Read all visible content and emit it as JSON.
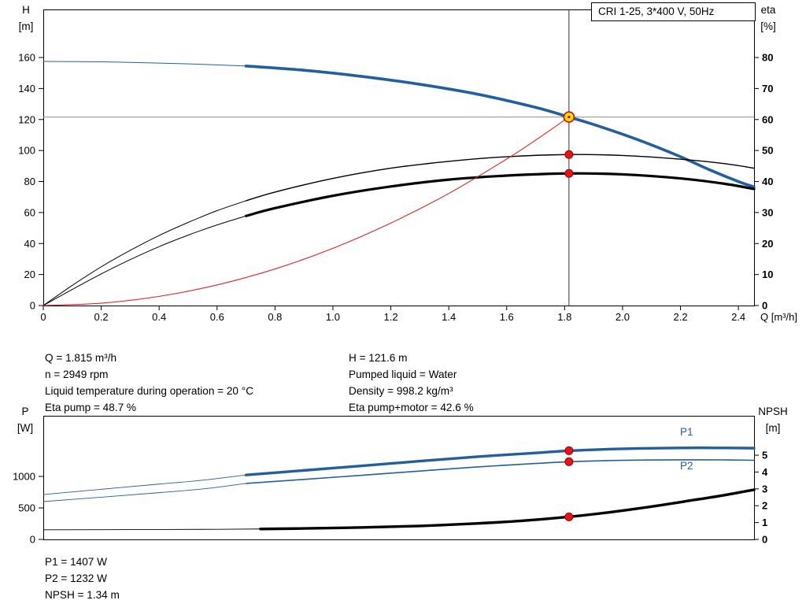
{
  "palette": {
    "curve_blue": "#235f9f",
    "curve_black": "#000000",
    "system_red": "#e02424",
    "dot_red": "#ee1111",
    "dot_stroke": "#990000",
    "duty_fill": "#ffe000",
    "duty_stroke": "#dd0000",
    "crosshair_gray": "#909090",
    "axis_black": "#000000"
  },
  "title_box": "CRI 1-25, 3*400 V, 50Hz",
  "readout": {
    "left": [
      "Q = 1.815 m³/h",
      "n = 2949 rpm",
      "Liquid temperature during operation = 20 °C",
      "Eta pump = 48.7 %"
    ],
    "right": [
      "H = 121.6 m",
      "Pumped liquid = Water",
      "Density = 998.2 kg/m³",
      "Eta pump+motor = 42.6 %"
    ]
  },
  "footer": {
    "lines": [
      "P1 = 1407 W",
      "P2 = 1232 W",
      "NPSH = 1.34 m"
    ]
  },
  "chart_data": [
    {
      "id": "qh",
      "type": "line",
      "title": "CRI 1-25, 3*400 V, 50Hz",
      "x_axis": {
        "label": "Q [m³/h]",
        "min": 0,
        "max": 2.454,
        "tick_values": [
          0,
          0.2,
          0.4,
          0.6,
          0.8,
          1.0,
          1.2,
          1.4,
          1.6,
          1.8,
          2.0,
          2.2,
          2.4
        ],
        "tick_labels": [
          "0",
          "0.2",
          "0.4",
          "0.6",
          "0.8",
          "1.0",
          "1.2",
          "1.4",
          "1.6",
          "1.8",
          "2.0",
          "2.2",
          "2.4"
        ]
      },
      "y_left": {
        "label_lines": [
          "H",
          "[m]"
        ],
        "min": 0,
        "max": 191,
        "tick_values": [
          0,
          20,
          40,
          60,
          80,
          100,
          120,
          140,
          160
        ],
        "tick_labels": [
          "0",
          "20",
          "40",
          "60",
          "80",
          "100",
          "120",
          "140",
          "160"
        ]
      },
      "y_right": {
        "label_lines": [
          "eta",
          "[%]"
        ],
        "min": 0,
        "max": 95.5,
        "tick_values": [
          0,
          10,
          20,
          30,
          40,
          50,
          60,
          70,
          80
        ],
        "tick_labels": [
          "0",
          "10",
          "20",
          "30",
          "40",
          "50",
          "60",
          "70",
          "80"
        ]
      },
      "crosshair": {
        "x": 1.815,
        "y": 121.6
      },
      "series": [
        {
          "name": "head-curve",
          "label": "H",
          "axis": "left",
          "color_key": "curve_blue",
          "width": 3.6,
          "width_thin": 1,
          "thick_from": 0.7,
          "points": [
            [
              0,
              157.5
            ],
            [
              0.2,
              157.2
            ],
            [
              0.4,
              156.4
            ],
            [
              0.55,
              155.6
            ],
            [
              0.7,
              154.5
            ],
            [
              0.9,
              151.8
            ],
            [
              1.1,
              147.8
            ],
            [
              1.3,
              142.7
            ],
            [
              1.5,
              136.3
            ],
            [
              1.7,
              127.8
            ],
            [
              1.815,
              121.6
            ],
            [
              1.9,
              116.8
            ],
            [
              2.0,
              110.5
            ],
            [
              2.1,
              103.6
            ],
            [
              2.2,
              96.0
            ],
            [
              2.3,
              87.6
            ],
            [
              2.4,
              80.0
            ],
            [
              2.454,
              76.5
            ]
          ]
        },
        {
          "name": "eta-pump-curve",
          "label": "Eta pump",
          "axis": "right",
          "color_key": "curve_black",
          "width": 1.4,
          "width_thin": 1,
          "thick_from": 0.7,
          "points": [
            [
              0,
              0
            ],
            [
              0.1,
              6.5
            ],
            [
              0.2,
              12.5
            ],
            [
              0.3,
              17.8
            ],
            [
              0.4,
              22.6
            ],
            [
              0.5,
              26.8
            ],
            [
              0.6,
              30.6
            ],
            [
              0.7,
              33.8
            ],
            [
              0.8,
              36.6
            ],
            [
              1.0,
              41.0
            ],
            [
              1.2,
              44.3
            ],
            [
              1.4,
              46.5
            ],
            [
              1.6,
              48.0
            ],
            [
              1.815,
              48.7
            ],
            [
              2.0,
              48.4
            ],
            [
              2.2,
              47.2
            ],
            [
              2.35,
              45.8
            ],
            [
              2.454,
              44.3
            ]
          ]
        },
        {
          "name": "eta-pump-motor-curve",
          "label": "Eta pump+motor",
          "axis": "right",
          "color_key": "curve_black",
          "width": 3.2,
          "width_thin": 1,
          "thick_from": 0.7,
          "points": [
            [
              0,
              0
            ],
            [
              0.1,
              5.2
            ],
            [
              0.2,
              10.2
            ],
            [
              0.3,
              14.8
            ],
            [
              0.4,
              19.0
            ],
            [
              0.5,
              22.7
            ],
            [
              0.6,
              26.0
            ],
            [
              0.7,
              28.9
            ],
            [
              0.8,
              31.4
            ],
            [
              1.0,
              35.4
            ],
            [
              1.2,
              38.4
            ],
            [
              1.4,
              40.6
            ],
            [
              1.6,
              41.9
            ],
            [
              1.815,
              42.6
            ],
            [
              2.0,
              42.3
            ],
            [
              2.2,
              41.0
            ],
            [
              2.35,
              39.3
            ],
            [
              2.454,
              37.6
            ]
          ]
        },
        {
          "name": "system-curve",
          "label": "System",
          "axis": "left",
          "color_key": "system_red",
          "width": 1.1,
          "points": [
            [
              0,
              0
            ],
            [
              0.2,
              1.5
            ],
            [
              0.4,
              5.9
            ],
            [
              0.6,
              13.3
            ],
            [
              0.8,
              23.6
            ],
            [
              1.0,
              36.9
            ],
            [
              1.2,
              53.2
            ],
            [
              1.4,
              72.3
            ],
            [
              1.6,
              94.5
            ],
            [
              1.7,
              106.7
            ],
            [
              1.815,
              121.6
            ]
          ]
        }
      ],
      "markers": [
        {
          "kind": "duty",
          "x": 1.815,
          "y": 121.6,
          "axis": "left"
        },
        {
          "kind": "dot",
          "x": 1.815,
          "y": 48.7,
          "axis": "right"
        },
        {
          "kind": "dot",
          "x": 1.815,
          "y": 42.6,
          "axis": "right"
        }
      ]
    },
    {
      "id": "power",
      "type": "line",
      "title": "",
      "x_axis": {
        "label": "",
        "min": 0,
        "max": 2.454,
        "tick_values": [],
        "tick_labels": []
      },
      "y_left": {
        "label_lines": [
          "P",
          "[W]"
        ],
        "min": 0,
        "max": 1962,
        "tick_values": [
          0,
          500,
          1000
        ],
        "tick_labels": [
          "0",
          "500",
          "1000"
        ]
      },
      "y_right": {
        "label_lines": [
          "NPSH",
          "[m]"
        ],
        "min": 0,
        "max": 7.34,
        "tick_values": [
          0,
          1,
          2,
          3,
          4,
          5
        ],
        "tick_labels": [
          "0",
          "1",
          "2",
          "3",
          "4",
          "5"
        ]
      },
      "series": [
        {
          "name": "p1-curve",
          "label": "P1",
          "axis": "left",
          "color_key": "curve_blue",
          "width": 3.4,
          "width_thin": 0.9,
          "thick_from": 0.7,
          "points": [
            [
              0,
              712
            ],
            [
              0.2,
              795
            ],
            [
              0.4,
              878
            ],
            [
              0.55,
              940
            ],
            [
              0.7,
              1022
            ],
            [
              0.9,
              1095
            ],
            [
              1.1,
              1168
            ],
            [
              1.3,
              1242
            ],
            [
              1.5,
              1313
            ],
            [
              1.7,
              1372
            ],
            [
              1.815,
              1407
            ],
            [
              2.0,
              1438
            ],
            [
              2.2,
              1452
            ],
            [
              2.35,
              1452
            ],
            [
              2.454,
              1448
            ]
          ]
        },
        {
          "name": "p2-curve",
          "label": "P2",
          "axis": "left",
          "color_key": "curve_blue",
          "width": 1.6,
          "width_thin": 0.9,
          "thick_from": 0.7,
          "points": [
            [
              0,
              600
            ],
            [
              0.2,
              670
            ],
            [
              0.4,
              742
            ],
            [
              0.55,
              800
            ],
            [
              0.7,
              888
            ],
            [
              0.9,
              952
            ],
            [
              1.1,
              1018
            ],
            [
              1.3,
              1085
            ],
            [
              1.5,
              1150
            ],
            [
              1.7,
              1205
            ],
            [
              1.815,
              1232
            ],
            [
              2.0,
              1255
            ],
            [
              2.2,
              1263
            ],
            [
              2.35,
              1262
            ],
            [
              2.454,
              1256
            ]
          ]
        },
        {
          "name": "npsh-curve",
          "label": "NPSH",
          "axis": "right",
          "color_key": "curve_black",
          "width": 3.4,
          "width_thin": 0.9,
          "thick_from": 0.75,
          "points": [
            [
              0,
              0.57
            ],
            [
              0.3,
              0.58
            ],
            [
              0.6,
              0.6
            ],
            [
              0.75,
              0.62
            ],
            [
              0.9,
              0.65
            ],
            [
              1.1,
              0.71
            ],
            [
              1.3,
              0.8
            ],
            [
              1.5,
              0.95
            ],
            [
              1.65,
              1.1
            ],
            [
              1.815,
              1.34
            ],
            [
              1.95,
              1.6
            ],
            [
              2.1,
              1.95
            ],
            [
              2.25,
              2.35
            ],
            [
              2.35,
              2.62
            ],
            [
              2.454,
              2.95
            ]
          ]
        }
      ],
      "markers": [
        {
          "kind": "dot",
          "x": 1.815,
          "y": 1407,
          "axis": "left"
        },
        {
          "kind": "dot",
          "x": 1.815,
          "y": 1232,
          "axis": "left"
        },
        {
          "kind": "dot",
          "x": 1.815,
          "y": 1.34,
          "axis": "right"
        }
      ]
    }
  ]
}
